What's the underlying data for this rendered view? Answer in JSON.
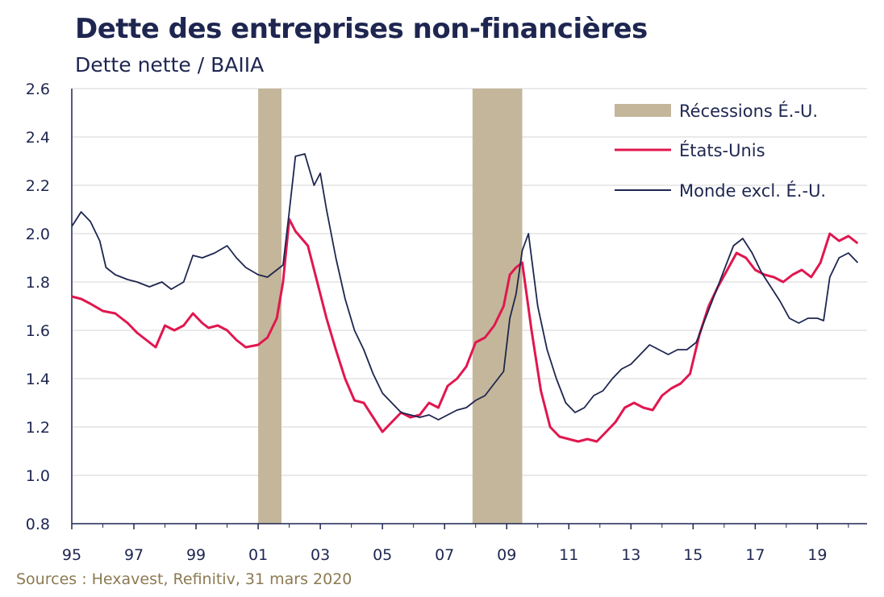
{
  "title": "Dette des entreprises non-financières",
  "subtitle": "Dette nette / BAIIA",
  "source": "Sources : Hexavest, Refinitiv, 31 mars 2020",
  "colors": {
    "us": "#e0174f",
    "world": "#1e2650",
    "recession": "#c4b69a"
  },
  "chart_data": {
    "type": "line",
    "title": "Dette des entreprises non-financières",
    "ylabel": "Dette nette / BAIIA",
    "xlabel": "",
    "x_tick_labels": [
      "95",
      "97",
      "99",
      "01",
      "03",
      "05",
      "07",
      "09",
      "11",
      "13",
      "15",
      "17",
      "19"
    ],
    "x_tick_years": [
      1995,
      1997,
      1999,
      2001,
      2003,
      2005,
      2007,
      2009,
      2011,
      2013,
      2015,
      2017,
      2019
    ],
    "xlim": [
      1995,
      2020.6
    ],
    "ylim": [
      0.8,
      2.6
    ],
    "y_ticks": [
      "0.8",
      "1.0",
      "1.2",
      "1.4",
      "1.6",
      "1.8",
      "2.0",
      "2.2",
      "2.4",
      "2.6"
    ],
    "grid": true,
    "legend_position": "top-right",
    "recessions": [
      {
        "name": "Récessions É.-U.",
        "start": 2001.0,
        "end": 2001.75
      },
      {
        "name": "Récessions É.-U.",
        "start": 2007.9,
        "end": 2009.5
      }
    ],
    "legend": [
      "Récessions É.-U.",
      "États-Unis",
      "Monde excl. É.-U."
    ],
    "series": [
      {
        "name": "États-Unis",
        "x": [
          1995.0,
          1995.3,
          1995.6,
          1996.0,
          1996.4,
          1996.8,
          1997.1,
          1997.4,
          1997.7,
          1998.0,
          1998.3,
          1998.6,
          1998.9,
          1999.2,
          1999.4,
          1999.7,
          2000.0,
          2000.3,
          2000.6,
          2001.0,
          2001.3,
          2001.6,
          2001.8,
          2002.0,
          2002.2,
          2002.6,
          2002.9,
          2003.2,
          2003.5,
          2003.8,
          2004.1,
          2004.4,
          2004.7,
          2005.0,
          2005.3,
          2005.6,
          2005.9,
          2006.2,
          2006.5,
          2006.8,
          2007.1,
          2007.4,
          2007.7,
          2008.0,
          2008.3,
          2008.6,
          2008.9,
          2009.1,
          2009.3,
          2009.5,
          2009.8,
          2010.1,
          2010.4,
          2010.7,
          2011.0,
          2011.3,
          2011.6,
          2011.9,
          2012.2,
          2012.5,
          2012.8,
          2013.1,
          2013.4,
          2013.7,
          2014.0,
          2014.3,
          2014.6,
          2014.9,
          2015.2,
          2015.5,
          2015.8,
          2016.1,
          2016.4,
          2016.7,
          2017.0,
          2017.3,
          2017.6,
          2017.9,
          2018.2,
          2018.5,
          2018.8,
          2019.1,
          2019.4,
          2019.7,
          2020.0,
          2020.3
        ],
        "values": [
          1.74,
          1.73,
          1.71,
          1.68,
          1.67,
          1.63,
          1.59,
          1.56,
          1.53,
          1.62,
          1.6,
          1.62,
          1.67,
          1.63,
          1.61,
          1.62,
          1.6,
          1.56,
          1.53,
          1.54,
          1.57,
          1.65,
          1.8,
          2.06,
          2.01,
          1.95,
          1.8,
          1.65,
          1.52,
          1.4,
          1.31,
          1.3,
          1.24,
          1.18,
          1.22,
          1.26,
          1.24,
          1.25,
          1.3,
          1.28,
          1.37,
          1.4,
          1.45,
          1.55,
          1.57,
          1.62,
          1.7,
          1.83,
          1.86,
          1.88,
          1.6,
          1.35,
          1.2,
          1.16,
          1.15,
          1.14,
          1.15,
          1.14,
          1.18,
          1.22,
          1.28,
          1.3,
          1.28,
          1.27,
          1.33,
          1.36,
          1.38,
          1.42,
          1.58,
          1.7,
          1.78,
          1.85,
          1.92,
          1.9,
          1.85,
          1.83,
          1.82,
          1.8,
          1.83,
          1.85,
          1.82,
          1.88,
          2.0,
          1.97,
          1.99,
          1.96
        ],
        "color": "#e0174f"
      },
      {
        "name": "Monde excl. É.-U.",
        "x": [
          1995.0,
          1995.1,
          1995.3,
          1995.6,
          1995.9,
          1996.1,
          1996.4,
          1996.8,
          1997.1,
          1997.5,
          1997.9,
          1998.2,
          1998.6,
          1998.9,
          1999.2,
          1999.6,
          2000.0,
          2000.3,
          2000.6,
          2001.0,
          2001.3,
          2001.6,
          2001.8,
          2002.0,
          2002.2,
          2002.5,
          2002.8,
          2003.0,
          2003.2,
          2003.5,
          2003.8,
          2004.1,
          2004.4,
          2004.7,
          2005.0,
          2005.3,
          2005.6,
          2005.9,
          2006.2,
          2006.5,
          2006.8,
          2007.1,
          2007.4,
          2007.7,
          2008.0,
          2008.3,
          2008.6,
          2008.9,
          2009.1,
          2009.3,
          2009.5,
          2009.7,
          2010.0,
          2010.3,
          2010.6,
          2010.9,
          2011.2,
          2011.5,
          2011.8,
          2012.1,
          2012.4,
          2012.7,
          2013.0,
          2013.3,
          2013.6,
          2013.9,
          2014.2,
          2014.5,
          2014.8,
          2015.1,
          2015.4,
          2015.7,
          2016.0,
          2016.3,
          2016.6,
          2016.9,
          2017.2,
          2017.5,
          2017.8,
          2018.1,
          2018.4,
          2018.7,
          2019.0,
          2019.2,
          2019.4,
          2019.7,
          2020.0,
          2020.3
        ],
        "values": [
          2.03,
          2.05,
          2.09,
          2.05,
          1.97,
          1.86,
          1.83,
          1.81,
          1.8,
          1.78,
          1.8,
          1.77,
          1.8,
          1.91,
          1.9,
          1.92,
          1.95,
          1.9,
          1.86,
          1.83,
          1.82,
          1.85,
          1.87,
          2.09,
          2.32,
          2.33,
          2.2,
          2.25,
          2.1,
          1.9,
          1.73,
          1.6,
          1.52,
          1.42,
          1.34,
          1.3,
          1.26,
          1.25,
          1.24,
          1.25,
          1.23,
          1.25,
          1.27,
          1.28,
          1.31,
          1.33,
          1.38,
          1.43,
          1.65,
          1.75,
          1.93,
          2.0,
          1.7,
          1.52,
          1.4,
          1.3,
          1.26,
          1.28,
          1.33,
          1.35,
          1.4,
          1.44,
          1.46,
          1.5,
          1.54,
          1.52,
          1.5,
          1.52,
          1.52,
          1.55,
          1.65,
          1.75,
          1.85,
          1.95,
          1.98,
          1.92,
          1.84,
          1.78,
          1.72,
          1.65,
          1.63,
          1.65,
          1.65,
          1.64,
          1.82,
          1.9,
          1.92,
          1.88
        ],
        "color": "#1e2650"
      }
    ]
  }
}
